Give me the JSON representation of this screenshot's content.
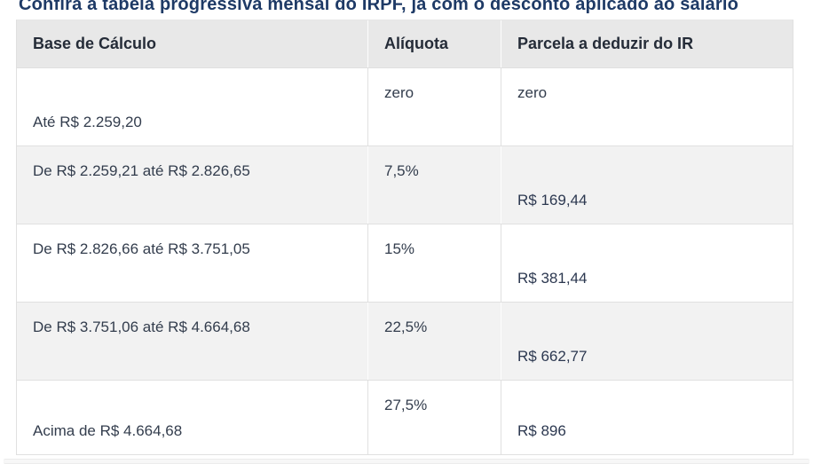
{
  "page": {
    "title": "Confira a tabela progressiva mensal do IRPF, já com o desconto aplicado ao salário"
  },
  "table": {
    "headers": {
      "base": "Base de Cálculo",
      "aliquota": "Alíquota",
      "parcela": "Parcela a deduzir do IR"
    },
    "rows": [
      {
        "base": "Até R$ 2.259,20",
        "aliquota": "zero",
        "parcela": "zero"
      },
      {
        "base": "De R$ 2.259,21 até R$ 2.826,65",
        "aliquota": "7,5%",
        "parcela": "R$ 169,44"
      },
      {
        "base": "De R$ 2.826,66 até R$ 3.751,05",
        "aliquota": "15%",
        "parcela": "R$ 381,44"
      },
      {
        "base": "De R$ 3.751,06 até R$ 4.664,68",
        "aliquota": "22,5%",
        "parcela": "R$ 662,77"
      },
      {
        "base": "Acima de R$ 4.664,68",
        "aliquota": "27,5%",
        "parcela": "R$ 896"
      }
    ]
  },
  "colors": {
    "title_text": "#1e3a66",
    "header_bg": "#e8e8e8",
    "row_alt_bg": "#f2f2f2",
    "row_bg": "#ffffff",
    "cell_text": "#333d4d",
    "border": "#e0e0e0"
  }
}
